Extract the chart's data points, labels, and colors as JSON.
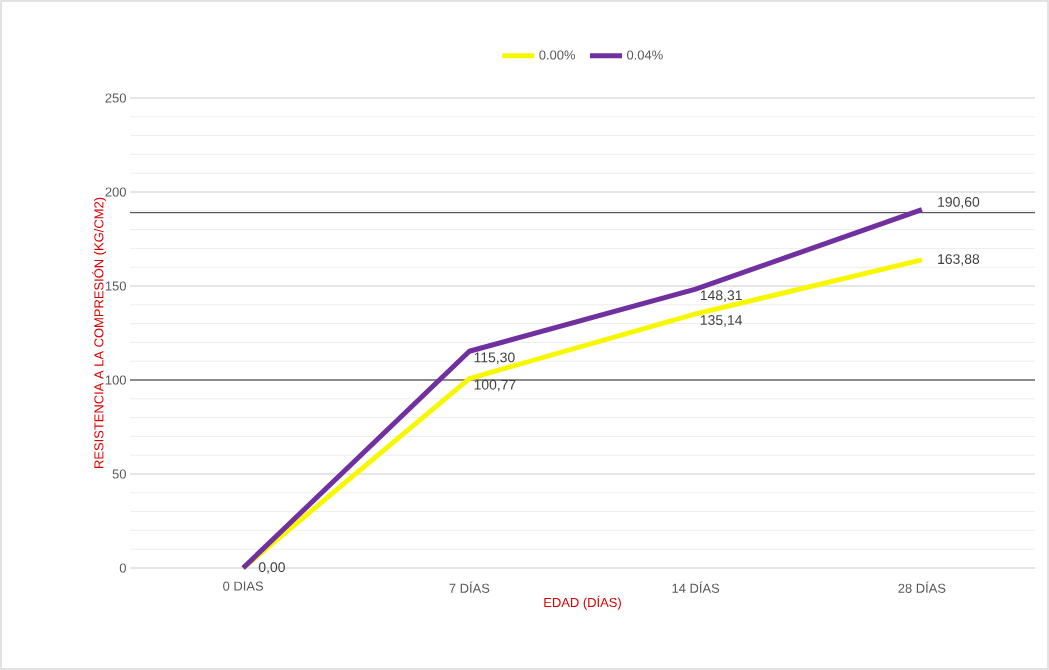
{
  "chart_data": {
    "type": "line",
    "xlabel": "EDAD (DÍAS)",
    "ylabel": "RESISTENCIA A LA COMPRESIÓN (KG/CM2)",
    "categories": [
      "0 DIAS",
      "7 DÍAS",
      "14 DÍAS",
      "28  DÍAS"
    ],
    "series": [
      {
        "name": "0.00%",
        "color": "#f7f700",
        "values": [
          0,
          100.77,
          135.14,
          163.88
        ],
        "value_labels": [
          "0,00",
          "100,77",
          "135,14",
          "163,88"
        ]
      },
      {
        "name": "0.04%",
        "color": "#7030a0",
        "values": [
          0,
          115.3,
          148.31,
          190.6
        ],
        "value_labels": [
          null,
          "115,30",
          "148,31",
          "190,60"
        ]
      }
    ],
    "ylim": [
      0,
      250
    ],
    "yticks": [
      0,
      50,
      100,
      150,
      200,
      250
    ],
    "grid": "y",
    "legend": "top",
    "marker": "none",
    "line_style": "solid",
    "ref_lines": [
      {
        "axis": "y",
        "value": 100,
        "color": "#333333"
      },
      {
        "axis": "y",
        "value": 189,
        "color": "#333333"
      }
    ]
  }
}
